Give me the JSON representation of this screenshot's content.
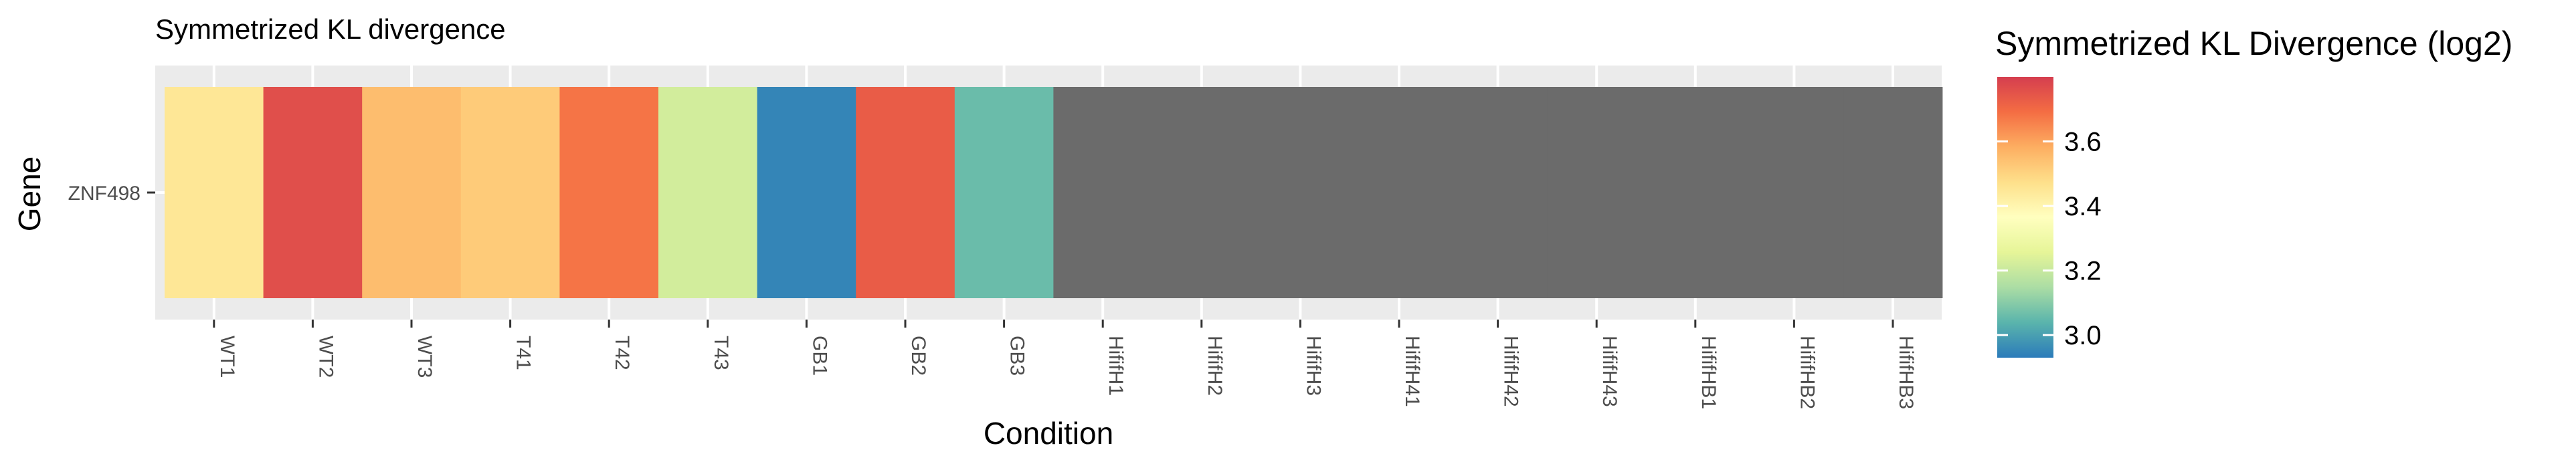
{
  "chart_data": {
    "type": "heatmap",
    "title": "Symmetrized KL divergence",
    "xlabel": "Condition",
    "ylabel": "Gene",
    "grid": true,
    "rows": [
      "ZNF498"
    ],
    "columns": [
      "WT1",
      "WT2",
      "WT3",
      "T41",
      "T42",
      "T43",
      "GB1",
      "GB2",
      "GB3",
      "HififH1",
      "HififH2",
      "HififH3",
      "HififH41",
      "HififH42",
      "HififH43",
      "HififHB1",
      "HififHB2",
      "HififHB3"
    ],
    "values": [
      [
        3.45,
        3.76,
        3.55,
        3.52,
        3.68,
        3.22,
        2.95,
        3.73,
        3.06,
        null,
        null,
        null,
        null,
        null,
        null,
        null,
        null,
        null
      ]
    ],
    "na_color": "#6b6b6b",
    "legend": {
      "title": "Symmetrized KL Divergence (log2)",
      "position": "right",
      "min": 2.93,
      "max": 3.8,
      "ticks": [
        "3.0",
        "3.2",
        "3.4",
        "3.6"
      ],
      "colors": [
        "#2b7bba",
        "#5ab4ac",
        "#abdda4",
        "#e6f598",
        "#ffffbf",
        "#fee08b",
        "#fdae61",
        "#f46d43",
        "#d53e4f"
      ]
    }
  }
}
